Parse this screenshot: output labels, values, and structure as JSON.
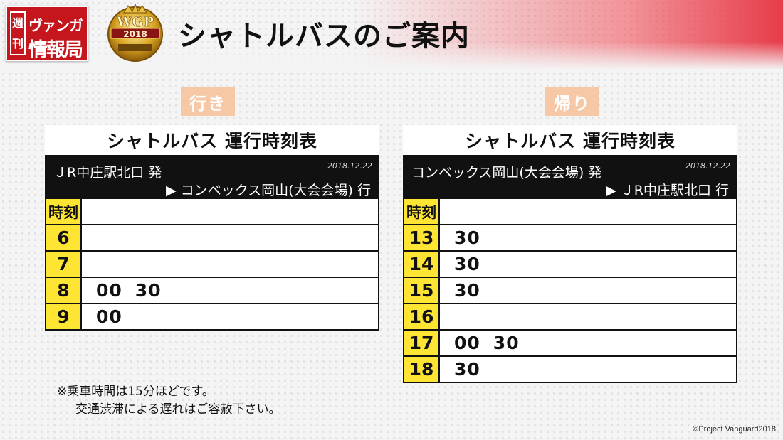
{
  "header": {
    "logo_small": [
      "週",
      "刊"
    ],
    "logo_line1": "ヴァンガ",
    "logo_line2": "情報局",
    "emblem_text": "WGP",
    "emblem_year": "2018",
    "title": "シャトルバスのご案内"
  },
  "outbound": {
    "tag": "行き",
    "title": "シャトルバス 運行時刻表",
    "from": "ＪR中庄駅北口 発",
    "to": "▶ コンベックス岡山(大会会場) 行",
    "date": "2018.12.22",
    "hour_header": "時刻",
    "rows": [
      {
        "hour": "6",
        "minutes": []
      },
      {
        "hour": "7",
        "minutes": []
      },
      {
        "hour": "8",
        "minutes": [
          "00",
          "30"
        ]
      },
      {
        "hour": "9",
        "minutes": [
          "00"
        ]
      }
    ]
  },
  "return": {
    "tag": "帰り",
    "title": "シャトルバス 運行時刻表",
    "from": "コンベックス岡山(大会会場) 発",
    "to": "▶ ＪR中庄駅北口 行",
    "date": "2018.12.22",
    "hour_header": "時刻",
    "rows": [
      {
        "hour": "13",
        "minutes": [
          "30"
        ]
      },
      {
        "hour": "14",
        "minutes": [
          "30"
        ]
      },
      {
        "hour": "15",
        "minutes": [
          "30"
        ]
      },
      {
        "hour": "16",
        "minutes": []
      },
      {
        "hour": "17",
        "minutes": [
          "00",
          "30"
        ]
      },
      {
        "hour": "18",
        "minutes": [
          "30"
        ]
      }
    ]
  },
  "note": {
    "line1": "※乗車時間は15分ほどです。",
    "line2": "交通渋滞による遅れはご容赦下さい。"
  },
  "copyright": "©Project Vanguard2018",
  "colors": {
    "hour_cell": "#ffe533",
    "tag_bg": "#f6c8a6",
    "logo_red": "#c4161c",
    "route_bar": "#111111"
  }
}
